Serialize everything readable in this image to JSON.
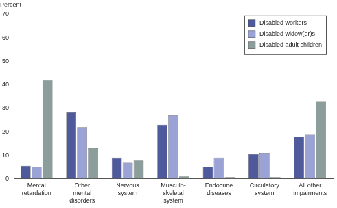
{
  "chart_data": {
    "type": "bar",
    "ylabel": "Percent",
    "categories": [
      "Mental\nretardation",
      "Other\nmental\ndisorders",
      "Nervous\nsystem",
      "Musculo-\nskeletal\nsystem",
      "Endocrine\ndiseases",
      "Circulatory\nsystem",
      "All other\nimpairments"
    ],
    "series": [
      {
        "name": "Disabled workers",
        "color": "#4f5a9c",
        "values": [
          5.5,
          28.5,
          9,
          23,
          5,
          10.5,
          18
        ]
      },
      {
        "name": "Disabled widow(er)s",
        "color": "#9ba3d6",
        "values": [
          5,
          22,
          7,
          27,
          9,
          11,
          19
        ]
      },
      {
        "name": "Disabled adult children",
        "color": "#8c9e9b",
        "values": [
          42,
          13,
          8,
          1,
          0.7,
          0.7,
          33
        ]
      }
    ],
    "ylim": [
      0,
      70
    ],
    "yticks": [
      0,
      10,
      20,
      30,
      40,
      50,
      60,
      70
    ],
    "grid": false,
    "legend": "upper right"
  }
}
